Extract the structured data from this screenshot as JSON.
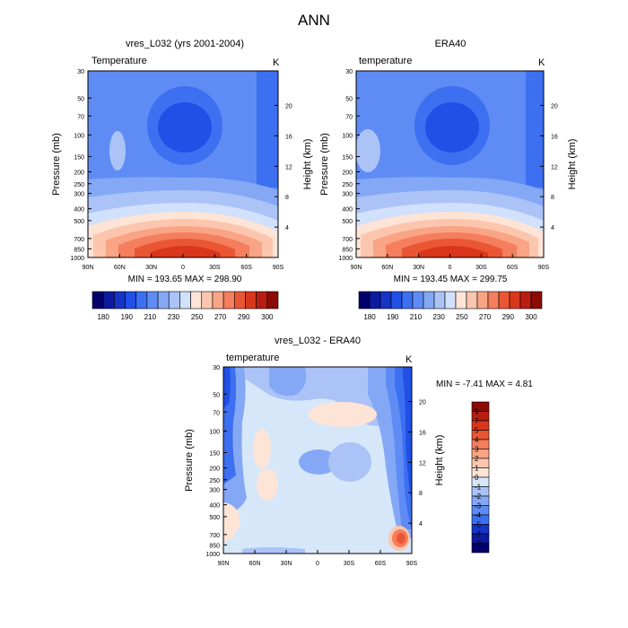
{
  "title": "ANN",
  "chart_data": [
    {
      "type": "heatmap",
      "title": "vres_L032 (yrs 2001-2004)",
      "left_label": "Temperature",
      "right_label": "K",
      "ylabel": "Pressure (mb)",
      "ylabel_right": "Height (km)",
      "x_ticks": [
        "90N",
        "60N",
        "30N",
        "0",
        "30S",
        "60S",
        "90S"
      ],
      "y_ticks": [
        "30",
        "50",
        "70",
        "100",
        "150",
        "200",
        "250",
        "300",
        "400",
        "500",
        "700",
        "850",
        "1000"
      ],
      "height_ticks": [
        "20",
        "16",
        "12",
        "8",
        "4"
      ],
      "stats": "MIN = 193.65   MAX = 298.90",
      "min": 193.65,
      "max": 298.9,
      "colorbar": {
        "labels": [
          "180",
          "190",
          "210",
          "230",
          "250",
          "270",
          "290",
          "300"
        ],
        "colors": [
          "#03006d",
          "#0c1aa0",
          "#1634c6",
          "#2050e6",
          "#3d6ff1",
          "#5f8cf4",
          "#85a8f6",
          "#abc3f7",
          "#d1e0fb",
          "#fde4d6",
          "#fcc6ae",
          "#f9a484",
          "#f47e5d",
          "#ea5633",
          "#d9361c",
          "#b81d12",
          "#8c0b07"
        ]
      }
    },
    {
      "type": "heatmap",
      "title": "ERA40",
      "left_label": "temperature",
      "right_label": "K",
      "ylabel": "Pressure (mb)",
      "ylabel_right": "Height (km)",
      "x_ticks": [
        "90N",
        "60N",
        "30N",
        "0",
        "30S",
        "60S",
        "90S"
      ],
      "y_ticks": [
        "30",
        "50",
        "70",
        "100",
        "150",
        "200",
        "250",
        "300",
        "400",
        "500",
        "700",
        "850",
        "1000"
      ],
      "height_ticks": [
        "20",
        "16",
        "12",
        "8",
        "4"
      ],
      "stats": "MIN = 193.45   MAX = 299.75",
      "min": 193.45,
      "max": 299.75,
      "colorbar": {
        "labels": [
          "180",
          "190",
          "210",
          "230",
          "250",
          "270",
          "290",
          "300"
        ],
        "colors": [
          "#03006d",
          "#0c1aa0",
          "#1634c6",
          "#2050e6",
          "#3d6ff1",
          "#5f8cf4",
          "#85a8f6",
          "#abc3f7",
          "#d1e0fb",
          "#fde4d6",
          "#fcc6ae",
          "#f9a484",
          "#f47e5d",
          "#ea5633",
          "#d9361c",
          "#b81d12",
          "#8c0b07"
        ]
      }
    },
    {
      "type": "heatmap",
      "title": "vres_L032 - ERA40",
      "left_label": "temperature",
      "right_label": "K",
      "ylabel": "Pressure (mb)",
      "ylabel_right": "Height (km)",
      "x_ticks": [
        "90N",
        "60N",
        "30N",
        "0",
        "30S",
        "60S",
        "90S"
      ],
      "y_ticks": [
        "30",
        "50",
        "70",
        "100",
        "150",
        "200",
        "250",
        "300",
        "400",
        "500",
        "700",
        "850",
        "1000"
      ],
      "height_ticks": [
        "20",
        "16",
        "12",
        "8",
        "4"
      ],
      "stats": "MIN =  -7.41   MAX =   4.81",
      "min": -7.41,
      "max": 4.81,
      "colorbar": {
        "labels": [
          "9",
          "7",
          "5",
          "4",
          "3",
          "2",
          "1",
          "0",
          "-1",
          "-2",
          "-3",
          "-4",
          "-5",
          "-7",
          "-9"
        ],
        "colors": [
          "#8c0b07",
          "#b81d12",
          "#d9361c",
          "#ea5633",
          "#f47e5d",
          "#f9a484",
          "#fcc6ae",
          "#fde4d6",
          "#d6e7fa",
          "#abc3f7",
          "#85a8f6",
          "#5f8cf4",
          "#3d6ff1",
          "#1634c6",
          "#0c1aa0",
          "#03006d"
        ]
      }
    }
  ]
}
